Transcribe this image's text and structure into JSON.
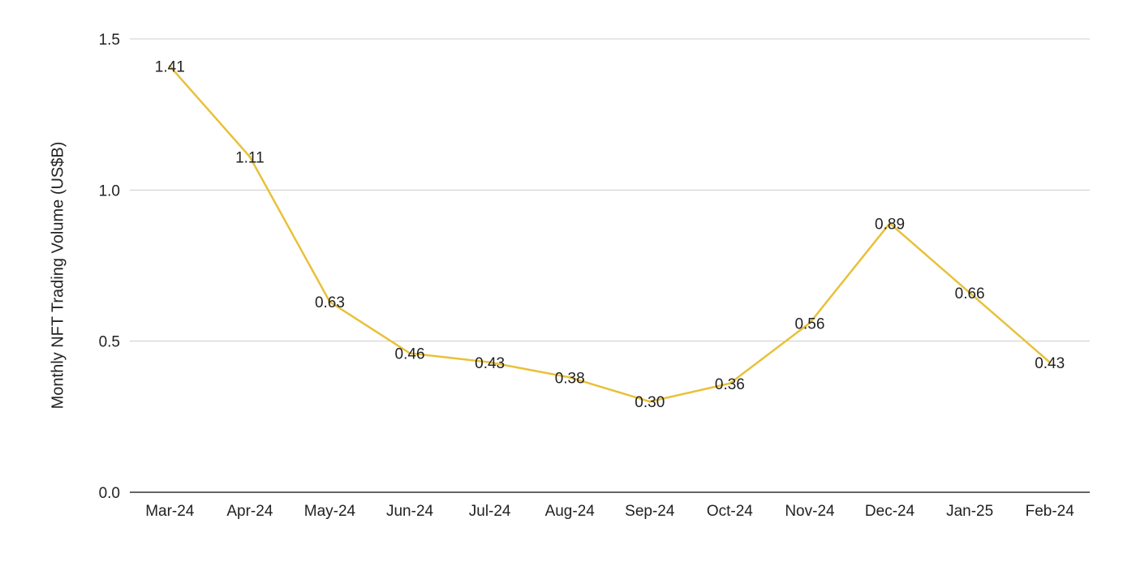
{
  "chart_data": {
    "type": "line",
    "title": "",
    "xlabel": "",
    "ylabel": "Monthly NFT Trading Volume (US$B)",
    "categories": [
      "Mar-24",
      "Apr-24",
      "May-24",
      "Jun-24",
      "Jul-24",
      "Aug-24",
      "Sep-24",
      "Oct-24",
      "Nov-24",
      "Dec-24",
      "Jan-25",
      "Feb-24"
    ],
    "series": [
      {
        "values": [
          1.41,
          1.11,
          0.63,
          0.46,
          0.43,
          0.38,
          0.3,
          0.36,
          0.56,
          0.89,
          0.66,
          0.43
        ],
        "data_labels": [
          "1.41",
          "1.11",
          "0.63",
          "0.46",
          "0.43",
          "0.38",
          "0.30",
          "0.36",
          "0.56",
          "0.89",
          "0.66",
          "0.43"
        ],
        "color": "#E8C13A"
      }
    ],
    "ylim": [
      0,
      1.5
    ],
    "yticks": [
      0.0,
      0.5,
      1.0,
      1.5
    ],
    "ytick_labels": [
      "0.0",
      "0.5",
      "1.0",
      "1.5"
    ],
    "grid": "horizontal",
    "grid_color": "#cccccc",
    "axis_color": "#333333",
    "legend": "none"
  }
}
